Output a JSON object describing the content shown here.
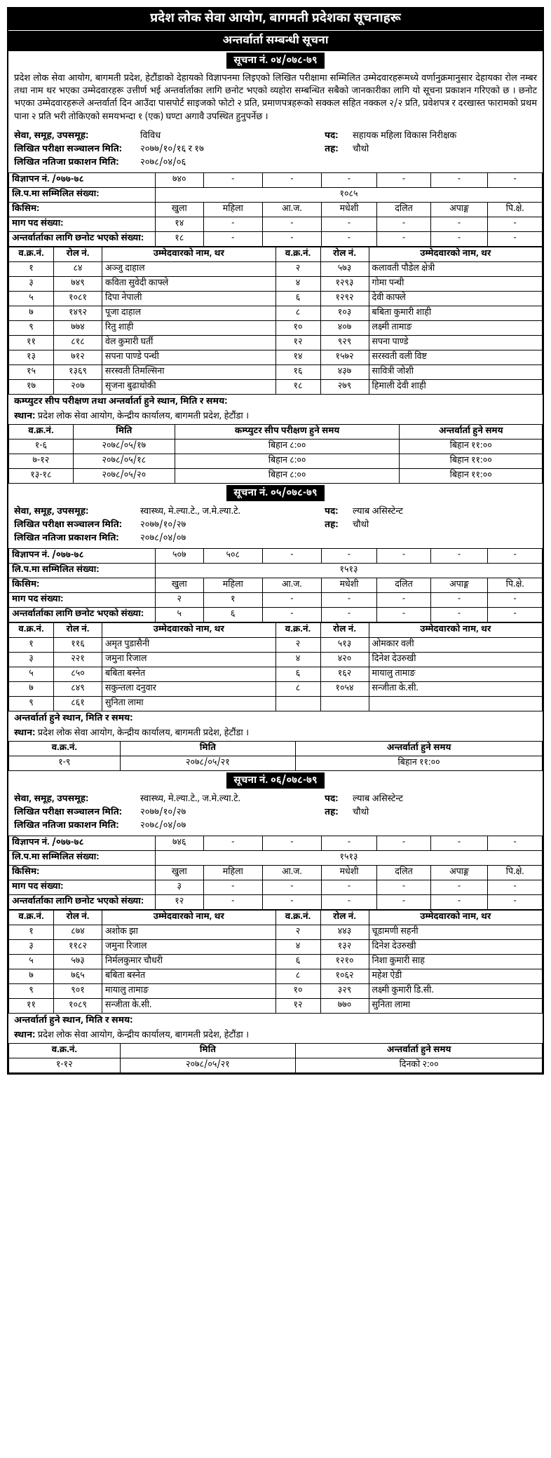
{
  "header": {
    "main_title": "प्रदेश लोक सेवा आयोग, बागमती प्रदेशका सूचनाहरू",
    "sub_title": "अन्तर्वार्ता सम्बन्धी सूचना"
  },
  "intro_para": "प्रदेश लोक सेवा आयोग, बागमती प्रदेश, हेटौंडाको देहायको विज्ञापनमा लिइएको लिखित परीक्षामा सम्मिलित उम्मेदवारहरूमध्ये वर्णानुक्रमानुसार देहायका रोल नम्बर तथा नाम थर भएका उम्मेदवारहरू उत्तीर्ण भई अन्तर्वार्ताका लागि छनोट भएको व्यहोरा सम्बन्धित सबैको जानकारीका लागि यो सूचना प्रकाशन गरिएको छ । छनोट भएका उम्मेदवारहरूले अन्तर्वार्ता दिन आउँदा पासपोर्ट साइजको फोटो २ प्रति, प्रमाणपत्रहरूको सक्कल सहित नक्कल २/२ प्रति, प्रवेशपत्र र दरखास्त फारामको प्रथम पाना २ प्रति भरी  तोकिएको समयभन्दा १ (एक) घण्टा अगावै उपस्थित हुनुपर्नेछ ।",
  "notices": [
    {
      "notice_no": "सूचना नं. ०४/०७८-७९",
      "info": {
        "service": "विविध",
        "post": "सहायक महिला विकास निरीक्षक",
        "exam_date": "२०७७/१०/१६ र १७",
        "level": "चौथो",
        "result_date": "२०७८/०४/०६"
      },
      "adv_table": {
        "adv_row": [
          "७४०",
          "-",
          "-",
          "-",
          "-",
          "-",
          "-"
        ],
        "total": "१०८५",
        "cats": [
          "खुला",
          "महिला",
          "आ.ज.",
          "मधेशी",
          "दलित",
          "अपाङ्ग",
          "पि.क्षे."
        ],
        "demand": [
          "१४",
          "-",
          "-",
          "-",
          "-",
          "-",
          "-"
        ],
        "selected": [
          "१८",
          "-",
          "-",
          "-",
          "-",
          "-",
          "-"
        ]
      },
      "candidates": [
        [
          "१",
          "८४",
          "अञ्जु दाहाल",
          "२",
          "५७३",
          "कलावती पौडेल क्षेत्री"
        ],
        [
          "३",
          "७४९",
          "कविता सुवेदी काफ्ले",
          "४",
          "१२९३",
          "गोमा पन्थी"
        ],
        [
          "५",
          "१०८१",
          "दिपा नेपाली",
          "६",
          "१२९२",
          "देवी काफ्ले"
        ],
        [
          "७",
          "१४९२",
          "पूजा दाहाल",
          "८",
          "१०३",
          "बबिता कुमारी शाही"
        ],
        [
          "९",
          "७७४",
          "रितु शाही",
          "१०",
          "४०७",
          "लक्ष्मी तामाङ"
        ],
        [
          "११",
          "८१८",
          "वेल कुमारी घर्ती",
          "१२",
          "९२९",
          "सपना पाण्डे"
        ],
        [
          "१३",
          "७१२",
          "सपना पाण्डे पन्थी",
          "१४",
          "१५७२",
          "सरस्वती वली विष्ट"
        ],
        [
          "१५",
          "१३६९",
          "सरस्वती तिमल्सिना",
          "१६",
          "४३७",
          "सावित्री जोशी"
        ],
        [
          "१७",
          "२०७",
          "सृजना बुढाथोकी",
          "१८",
          "२७९",
          "हिमाली देवी शाही"
        ]
      ],
      "venue_title": "कम्प्युटर सीप परीक्षण तथा अन्तर्वार्ता हुने स्थान, मिति र समय:",
      "venue": "प्रदेश लोक सेवा आयोग, केन्द्रीय कार्यालय, बागमती प्रदेश, हेटौंडा ।",
      "schedule_headers": [
        "व.क्र.नं.",
        "मिति",
        "कम्प्युटर सीप परीक्षण हुने समय",
        "अन्तर्वार्ता हुने समय"
      ],
      "schedule": [
        [
          "१-६",
          "२०७८/०५/१७",
          "बिहान ८:००",
          "बिहान ११:००"
        ],
        [
          "७-१२",
          "२०७८/०५/१८",
          "बिहान ८:००",
          "बिहान ११:००"
        ],
        [
          "१३-१८",
          "२०७८/०५/२०",
          "बिहान ८:००",
          "बिहान ११:००"
        ]
      ]
    },
    {
      "notice_no": "सूचना नं. ०५/०७८-७९",
      "info": {
        "service": "स्वास्थ्य, मे.ल्या.टे., ज.मे.ल्या.टे.",
        "post": "ल्याब असिस्टेन्ट",
        "exam_date": "२०७७/१०/२७",
        "level": "चौथो",
        "result_date": "२०७८/०४/०७"
      },
      "adv_table": {
        "adv_row": [
          "५०७",
          "५०८",
          "-",
          "-",
          "-",
          "-",
          "-"
        ],
        "total": "१५१३",
        "cats": [
          "खुला",
          "महिला",
          "आ.ज.",
          "मधेशी",
          "दलित",
          "अपाङ्ग",
          "पि.क्षे."
        ],
        "demand": [
          "२",
          "१",
          "-",
          "-",
          "-",
          "-",
          "-"
        ],
        "selected": [
          "५",
          "६",
          "-",
          "-",
          "-",
          "-",
          "-"
        ]
      },
      "candidates": [
        [
          "१",
          "११६",
          "अमृत पुडासैनी",
          "२",
          "५१३",
          "ओमकार वली"
        ],
        [
          "३",
          "२२१",
          "जमुना रिजाल",
          "४",
          "४२०",
          "दिनेश देउरुखी"
        ],
        [
          "५",
          "८५०",
          "बबिता बस्नेत",
          "६",
          "१६२",
          "मायालु तामाङ"
        ],
        [
          "७",
          "८४९",
          "सकुन्तला दनुवार",
          "८",
          "१०५४",
          "सन्जीता के.सी."
        ],
        [
          "९",
          "८६१",
          "सुनिता लामा",
          "",
          "",
          ""
        ]
      ],
      "venue_title": "अन्तर्वार्ता हुने स्थान, मिति र समय:",
      "venue": "प्रदेश लोक सेवा आयोग, केन्द्रीय कार्यालय, बागमती प्रदेश, हेटौंडा ।",
      "schedule_headers": [
        "व.क्र.नं.",
        "मिति",
        "अन्तर्वार्ता हुने समय"
      ],
      "schedule": [
        [
          "१-९",
          "२०७८/०५/२१",
          "बिहान ११:००"
        ]
      ]
    },
    {
      "notice_no": "सूचना नं. ०६/०७८-७९",
      "info": {
        "service": "स्वास्थ्य, मे.ल्या.टे., ज.मे.ल्या.टे.",
        "post": "ल्याब असिस्टेन्ट",
        "exam_date": "२०७७/१०/२७",
        "level": "चौथो",
        "result_date": "२०७८/०४/०७"
      },
      "adv_table": {
        "adv_row": [
          "७४६",
          "-",
          "-",
          "-",
          "-",
          "-",
          "-"
        ],
        "total": "१५१३",
        "cats": [
          "खुला",
          "महिला",
          "आ.ज.",
          "मधेशी",
          "दलित",
          "अपाङ्ग",
          "पि.क्षे."
        ],
        "demand": [
          "३",
          "-",
          "-",
          "-",
          "-",
          "-",
          "-"
        ],
        "selected": [
          "१२",
          "-",
          "-",
          "-",
          "-",
          "-",
          "-"
        ]
      },
      "candidates": [
        [
          "१",
          "८७४",
          "अशोक झा",
          "२",
          "४४३",
          "चूडामणी सहनी"
        ],
        [
          "३",
          "११८२",
          "जमुना रिजाल",
          "४",
          "१३२",
          "दिनेश देउरुखी"
        ],
        [
          "५",
          "५७३",
          "निर्मलकुमार चौधरी",
          "६",
          "१२१०",
          "निशा कुमारी साह"
        ],
        [
          "७",
          "७६५",
          "बबिता बस्नेत",
          "८",
          "१०६२",
          "महेश ऐडी"
        ],
        [
          "९",
          "९०१",
          "मायालु तामाङ",
          "१०",
          "३२९",
          "लक्ष्मी कुमारी डि.सी."
        ],
        [
          "११",
          "१०८९",
          "सन्जीता के.सी.",
          "१२",
          "७७०",
          "सुनिता लामा"
        ]
      ],
      "venue_title": "अन्तर्वार्ता हुने स्थान, मिति र समय:",
      "venue": "प्रदेश लोक सेवा आयोग, केन्द्रीय कार्यालय, बागमती प्रदेश, हेटौंडा ।",
      "schedule_headers": [
        "व.क्र.नं.",
        "मिति",
        "अन्तर्वार्ता हुने समय"
      ],
      "schedule": [
        [
          "१-१२",
          "२०७८/०५/२१",
          "दिनको २:००"
        ]
      ]
    }
  ],
  "labels": {
    "service": "सेवा, समूह, उपसमूह:",
    "post": "पद:",
    "exam_date": "लिखित परीक्षा सञ्चालन मिति:",
    "level": "तह:",
    "result_date": "लिखित नतिजा प्रकाशन मिति:",
    "adv_no": "विज्ञापन नं. /०७७-७८",
    "total": "लि.प.मा सम्मिलित संख्या:",
    "kind": "किसिम:",
    "demand": "माग पद संख्या:",
    "selected": "अन्तर्वार्ताका लागि छनोट भएको संख्या:",
    "sn": "व.क्र.नं.",
    "roll": "रोल नं.",
    "name": "उम्मेदवारको नाम, थर",
    "venue_lbl": "स्थान:"
  }
}
